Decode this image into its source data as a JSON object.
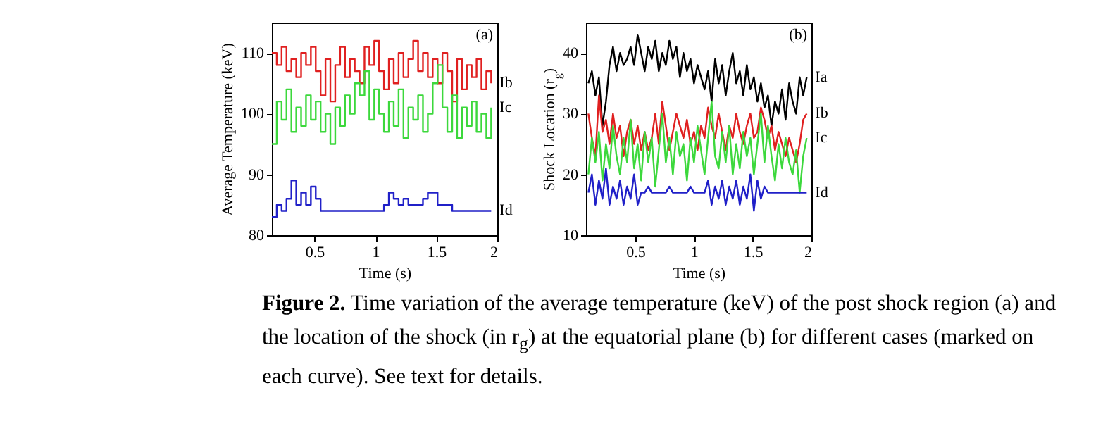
{
  "chart_data": [
    {
      "type": "step",
      "xlabel": "Time (s)",
      "ylabel": "Average Temperature (keV)",
      "xlim": [
        0.15,
        2
      ],
      "ylim": [
        80,
        115
      ],
      "xticks": [
        0.5,
        1,
        1.5,
        2
      ],
      "yticks": [
        80,
        90,
        100,
        110
      ],
      "x": [
        0.15,
        0.19,
        0.23,
        0.27,
        0.31,
        0.35,
        0.39,
        0.43,
        0.47,
        0.51,
        0.55,
        0.59,
        0.63,
        0.67,
        0.71,
        0.75,
        0.79,
        0.83,
        0.87,
        0.91,
        0.95,
        0.99,
        1.03,
        1.07,
        1.11,
        1.15,
        1.19,
        1.23,
        1.27,
        1.31,
        1.35,
        1.39,
        1.43,
        1.47,
        1.51,
        1.55,
        1.59,
        1.63,
        1.67,
        1.71,
        1.75,
        1.79,
        1.83,
        1.87,
        1.91,
        1.95
      ],
      "series": [
        {
          "name": "Ib",
          "color": "#e02020",
          "values": [
            110,
            108,
            111,
            107,
            109,
            106,
            110,
            108,
            111,
            107,
            103,
            109,
            102,
            108,
            111,
            106,
            109,
            107,
            105,
            111,
            108,
            112,
            107,
            104,
            109,
            105,
            110,
            106,
            109,
            112,
            107,
            110,
            106,
            109,
            105,
            110,
            107,
            102,
            109,
            104,
            108,
            106,
            109,
            104,
            107,
            105
          ]
        },
        {
          "name": "Ic",
          "color": "#3cd83c",
          "values": [
            95,
            102,
            99,
            104,
            97,
            101,
            98,
            103,
            99,
            102,
            97,
            100,
            95,
            101,
            98,
            103,
            100,
            105,
            103,
            107,
            99,
            104,
            100,
            97,
            102,
            98,
            104,
            96,
            101,
            99,
            103,
            97,
            100,
            105,
            108,
            101,
            97,
            103,
            96,
            101,
            98,
            102,
            97,
            100,
            96,
            101
          ]
        },
        {
          "name": "Id",
          "color": "#2020c8",
          "values": [
            83,
            85,
            84,
            86,
            89,
            85,
            87,
            85,
            88,
            86,
            84,
            84,
            84,
            84,
            84,
            84,
            84,
            84,
            84,
            84,
            84,
            84,
            84,
            85,
            87,
            86,
            85,
            86,
            85,
            85,
            85,
            86,
            87,
            87,
            85,
            85,
            85,
            84,
            84,
            84,
            84,
            84,
            84,
            84,
            84,
            84
          ]
        }
      ],
      "annotations": [
        "(a)",
        "Figure 2. Time variation of the average temperature (keV) of the post shock region (a) and the location of the shock (in r$_{g}$) at the equatorial plane (b) for different cases (marked on each curve). See text for details."
      ]
    },
    {
      "type": "line",
      "xlabel": "Time (s)",
      "ylabel": "Shock Location (r$_{g}$)",
      "xlim": [
        0.08,
        2
      ],
      "ylim": [
        10,
        45
      ],
      "xticks": [
        0.5,
        1,
        1.5,
        2
      ],
      "yticks": [
        10,
        20,
        30,
        40
      ],
      "x": [
        0.1,
        0.13,
        0.16,
        0.19,
        0.22,
        0.25,
        0.28,
        0.31,
        0.34,
        0.37,
        0.4,
        0.43,
        0.46,
        0.49,
        0.52,
        0.55,
        0.58,
        0.61,
        0.64,
        0.67,
        0.7,
        0.73,
        0.76,
        0.79,
        0.82,
        0.85,
        0.88,
        0.91,
        0.94,
        0.97,
        1.0,
        1.03,
        1.06,
        1.09,
        1.12,
        1.15,
        1.18,
        1.21,
        1.24,
        1.27,
        1.3,
        1.33,
        1.36,
        1.39,
        1.42,
        1.45,
        1.48,
        1.51,
        1.54,
        1.57,
        1.6,
        1.63,
        1.66,
        1.69,
        1.72,
        1.75,
        1.78,
        1.81,
        1.84,
        1.87,
        1.9,
        1.93,
        1.96
      ],
      "series": [
        {
          "name": "Ia",
          "color": "#000000",
          "values": [
            35,
            37,
            33,
            36,
            28,
            32,
            38,
            41,
            37,
            40,
            38,
            39,
            41,
            38,
            43,
            40,
            37,
            41,
            39,
            42,
            37,
            40,
            38,
            42,
            39,
            41,
            36,
            40,
            37,
            39,
            35,
            38,
            36,
            34,
            37,
            32,
            39,
            35,
            38,
            33,
            37,
            40,
            35,
            37,
            33,
            38,
            34,
            36,
            32,
            35,
            31,
            33,
            28,
            32,
            30,
            34,
            29,
            35,
            32,
            30,
            36,
            33,
            36
          ]
        },
        {
          "name": "Ib",
          "color": "#e02020",
          "values": [
            30,
            26,
            23,
            33,
            27,
            29,
            25,
            30,
            26,
            28,
            23,
            27,
            29,
            25,
            28,
            24,
            27,
            24,
            26,
            30,
            25,
            32,
            28,
            24,
            27,
            30,
            28,
            26,
            29,
            25,
            27,
            24,
            28,
            26,
            31,
            28,
            26,
            30,
            27,
            24,
            28,
            26,
            30,
            27,
            25,
            28,
            30,
            26,
            27,
            31,
            29,
            26,
            28,
            24,
            27,
            25,
            23,
            26,
            24,
            22,
            25,
            29,
            30
          ]
        },
        {
          "name": "Ic",
          "color": "#3cd83c",
          "values": [
            20,
            26,
            22,
            27,
            19,
            25,
            21,
            28,
            23,
            20,
            26,
            22,
            29,
            21,
            25,
            19,
            27,
            22,
            26,
            18,
            24,
            30,
            22,
            26,
            20,
            27,
            23,
            25,
            19,
            26,
            22,
            28,
            24,
            20,
            26,
            32,
            23,
            21,
            27,
            22,
            28,
            20,
            25,
            21,
            27,
            23,
            26,
            20,
            25,
            30,
            22,
            28,
            23,
            19,
            25,
            21,
            26,
            22,
            20,
            24,
            17,
            23,
            26
          ]
        },
        {
          "name": "Id",
          "color": "#2020c8",
          "values": [
            17,
            20,
            15,
            19,
            16,
            21,
            15,
            18,
            16,
            19,
            15,
            18,
            16,
            20,
            15,
            17,
            17,
            18,
            17,
            17,
            17,
            17,
            17,
            18,
            17,
            17,
            17,
            17,
            17,
            18,
            17,
            17,
            17,
            17,
            19,
            15,
            18,
            16,
            19,
            15,
            18,
            16,
            19,
            15,
            18,
            16,
            20,
            14,
            19,
            16,
            18,
            17,
            17,
            17,
            17,
            17,
            17,
            17,
            17,
            17,
            17,
            17,
            17
          ]
        }
      ],
      "annotations": [
        "(b)"
      ]
    }
  ]
}
